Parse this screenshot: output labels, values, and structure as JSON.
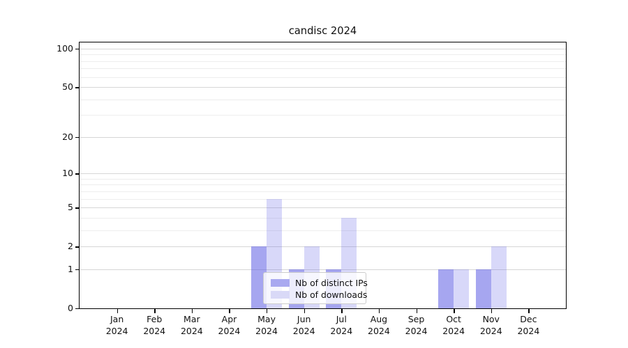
{
  "title": "candisc 2024",
  "chart_data": {
    "type": "bar",
    "title": "candisc 2024",
    "x_tick_months": [
      "Jan",
      "Feb",
      "Mar",
      "Apr",
      "May",
      "Jun",
      "Jul",
      "Aug",
      "Sep",
      "Oct",
      "Nov",
      "Dec"
    ],
    "x_tick_year": "2024",
    "categories": [
      "Jan 2024",
      "Feb 2024",
      "Mar 2024",
      "Apr 2024",
      "May 2024",
      "Jun 2024",
      "Jul 2024",
      "Aug 2024",
      "Sep 2024",
      "Oct 2024",
      "Nov 2024",
      "Dec 2024"
    ],
    "series": [
      {
        "name": "Nb of distinct IPs",
        "color": "rgba(92,92,228,0.55)",
        "solid_color": "#a9a9f0",
        "values": [
          0,
          0,
          0,
          0,
          2,
          1,
          1,
          0,
          0,
          1,
          1,
          0
        ]
      },
      {
        "name": "Nb of downloads",
        "color": "rgba(92,92,228,0.24)",
        "solid_color": "#d9d9f7",
        "values": [
          0,
          0,
          0,
          0,
          6,
          2,
          4,
          0,
          0,
          1,
          2,
          0
        ]
      }
    ],
    "yscale": "log1p",
    "major_yticks": [
      0,
      1,
      2,
      5,
      10,
      20,
      50,
      100
    ],
    "minor_yticks": [
      3,
      4,
      6,
      7,
      8,
      9,
      30,
      40,
      60,
      70,
      80,
      90
    ],
    "ylim": [
      0,
      113
    ],
    "xlabel": "",
    "ylabel": "",
    "grid": true,
    "legend_position": "lower center"
  },
  "styles": {
    "background": "#ffffff",
    "major_grid_color": "#d6d6d6",
    "minor_grid_color": "#ededed",
    "spine_color": "#000000",
    "text_color": "#111111",
    "legend_bg": "rgba(255,255,255,0.8)",
    "legend_border": "#cccccc"
  }
}
